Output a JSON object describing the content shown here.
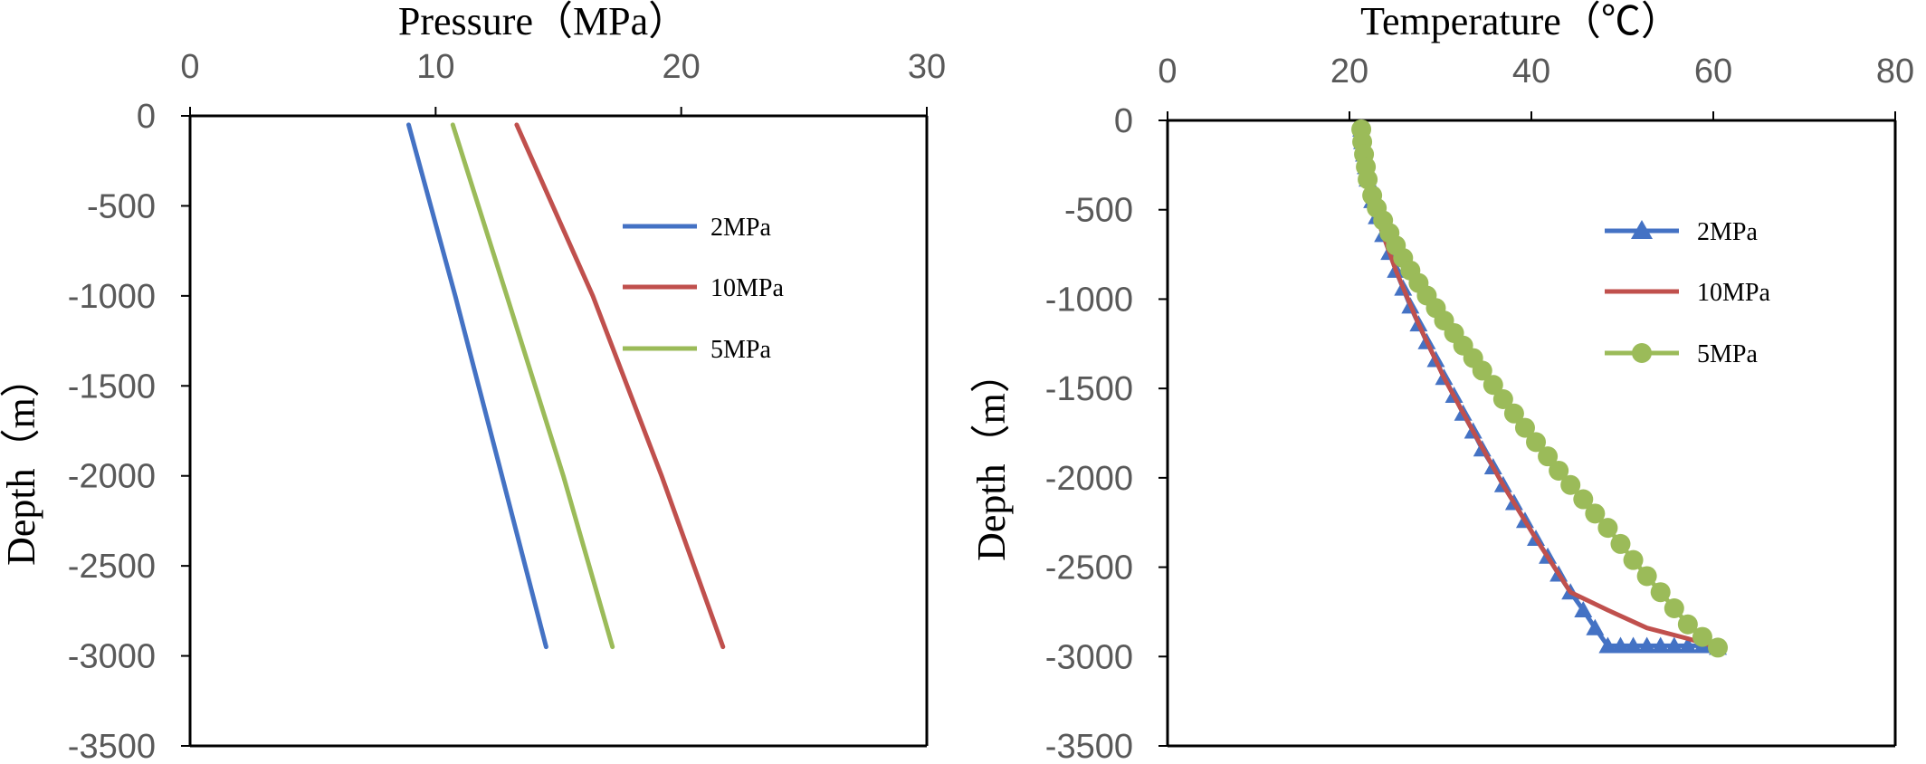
{
  "chart_data": [
    {
      "type": "line",
      "title": "Pressure（MPa）",
      "xlabel": "Pressure（MPa）",
      "ylabel": "Depth（m）",
      "xlim": [
        0,
        30
      ],
      "ylim": [
        -3500,
        0
      ],
      "x_ticks": [
        "0",
        "10",
        "20",
        "30"
      ],
      "y_ticks": [
        "0",
        "-500",
        "-1000",
        "-1500",
        "-2000",
        "-2500",
        "-3000",
        "-3500"
      ],
      "x_axis_position": "top",
      "grid": false,
      "legend_position": "right",
      "series": [
        {
          "name": "2MPa",
          "color": "#4472C4",
          "marker": "none",
          "x": [
            8.9,
            10.8,
            12.7,
            14.5
          ],
          "y": [
            -50,
            -1000,
            -2000,
            -2950
          ]
        },
        {
          "name": "10MPa",
          "color": "#C0504D",
          "marker": "none",
          "x": [
            13.3,
            16.4,
            19.2,
            21.7
          ],
          "y": [
            -50,
            -1000,
            -2000,
            -2950
          ]
        },
        {
          "name": "5MPa",
          "color": "#9BBB59",
          "marker": "none",
          "x": [
            10.7,
            12.9,
            15.2,
            17.2
          ],
          "y": [
            -50,
            -1000,
            -2000,
            -2950
          ]
        }
      ]
    },
    {
      "type": "line",
      "title": "Temperature（℃）",
      "xlabel": "Temperature（℃）",
      "ylabel": "Depth（m）",
      "xlim": [
        0,
        80
      ],
      "ylim": [
        -3500,
        0
      ],
      "x_ticks": [
        "0",
        "20",
        "40",
        "60",
        "80"
      ],
      "y_ticks": [
        "0",
        "-500",
        "-1000",
        "-1500",
        "-2000",
        "-2500",
        "-3000",
        "-3500"
      ],
      "x_axis_position": "top",
      "grid": false,
      "legend_position": "right",
      "series": [
        {
          "name": "2MPa",
          "color": "#4472C4",
          "marker": "triangle",
          "x": [
            21.3,
            21.4,
            21.6,
            21.8,
            22.0,
            22.5,
            23.0,
            23.7,
            24.4,
            25.1,
            25.9,
            26.7,
            27.6,
            28.5,
            29.5,
            30.4,
            31.5,
            32.5,
            33.6,
            34.6,
            35.8,
            36.9,
            38.1,
            39.3,
            40.5,
            41.8,
            43.0,
            44.3,
            45.7,
            47.0,
            48.4,
            49.8,
            51.2,
            52.7,
            54.2,
            55.7,
            57.2,
            58.8,
            60.5
          ],
          "y": [
            -50,
            -120,
            -190,
            -260,
            -330,
            -450,
            -540,
            -640,
            -740,
            -840,
            -940,
            -1040,
            -1140,
            -1240,
            -1340,
            -1440,
            -1540,
            -1640,
            -1740,
            -1840,
            -1940,
            -2040,
            -2140,
            -2240,
            -2340,
            -2440,
            -2540,
            -2640,
            -2740,
            -2840,
            -2940,
            -2940,
            -2940,
            -2940,
            -2940,
            -2940,
            -2940,
            -2940,
            -2950
          ]
        },
        {
          "name": "10MPa",
          "color": "#C0504D",
          "marker": "none",
          "x": [
            21.3,
            21.8,
            23.0,
            25.1,
            27.6,
            30.4,
            33.6,
            36.9,
            40.5,
            44.3,
            48.4,
            52.7,
            57.2,
            60.5
          ],
          "y": [
            -50,
            -260,
            -540,
            -840,
            -1140,
            -1440,
            -1740,
            -2040,
            -2340,
            -2640,
            -2740,
            -2840,
            -2900,
            -2950
          ]
        },
        {
          "name": "5MPa",
          "color": "#9BBB59",
          "marker": "circle",
          "x": [
            21.3,
            21.4,
            21.6,
            21.8,
            22.0,
            22.5,
            23.0,
            23.7,
            24.4,
            25.1,
            25.9,
            26.7,
            27.6,
            28.5,
            29.5,
            30.4,
            31.5,
            32.5,
            33.6,
            34.6,
            35.8,
            36.9,
            38.1,
            39.3,
            40.5,
            41.8,
            43.0,
            44.3,
            45.7,
            47.0,
            48.4,
            49.8,
            51.2,
            52.7,
            54.2,
            55.7,
            57.2,
            58.8,
            60.5
          ],
          "y": [
            -50,
            -120,
            -190,
            -260,
            -330,
            -420,
            -490,
            -560,
            -630,
            -700,
            -770,
            -840,
            -910,
            -980,
            -1050,
            -1120,
            -1190,
            -1260,
            -1330,
            -1400,
            -1480,
            -1560,
            -1640,
            -1720,
            -1800,
            -1880,
            -1960,
            -2040,
            -2120,
            -2200,
            -2280,
            -2370,
            -2460,
            -2550,
            -2640,
            -2730,
            -2820,
            -2890,
            -2950
          ]
        }
      ]
    }
  ]
}
